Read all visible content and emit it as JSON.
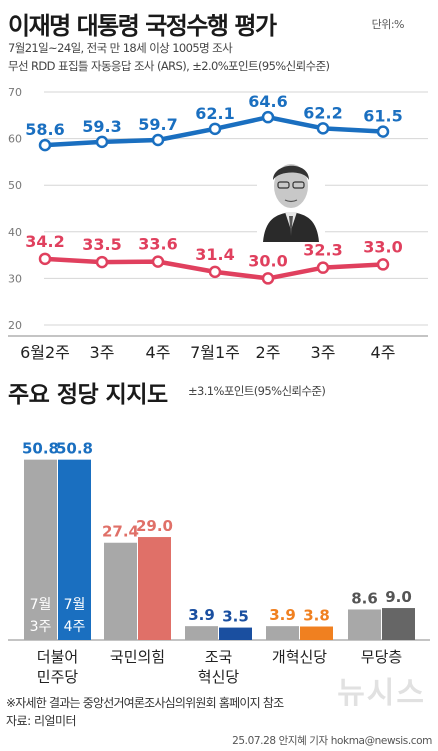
{
  "header": {
    "title": "이재명 대통령 국정수행 평가",
    "unit": "단위:%",
    "survey_info": "7월21일~24일, 전국 만 18세 이상 1005명 조사",
    "method_info": "무선 RDD 표집틀 자동응답 조사 (ARS), ±2.0%포인트(95%신뢰수준)"
  },
  "section2": {
    "title": "주요 정당 지지도",
    "margin": "±3.1%포인트(95%신뢰수준)"
  },
  "footer": {
    "note": "※자세한 결과는 중앙선거여론조사심의위원회 홈페이지 참조",
    "source": "자료: 리얼미터",
    "credit": "25.07.28 안지혜 기자 hokma@newsis.com",
    "watermark": "뉴시스"
  },
  "chart_data": [
    {
      "type": "line",
      "categories": [
        "6월2주",
        "3주",
        "4주",
        "7월1주",
        "2주",
        "3주",
        "4주"
      ],
      "ylim": [
        20,
        70
      ],
      "yticks": [
        "70",
        "60",
        "50",
        "40",
        "30",
        "20"
      ],
      "series": [
        {
          "values": [
            58.6,
            59.3,
            59.7,
            62.1,
            64.6,
            62.2,
            61.5
          ],
          "labels": [
            "58.6",
            "59.3",
            "59.7",
            "62.1",
            "64.6",
            "62.2",
            "61.5"
          ],
          "color": "#1a6fc0"
        },
        {
          "values": [
            34.2,
            33.5,
            33.6,
            31.4,
            30.0,
            32.3,
            33.0
          ],
          "labels": [
            "34.2",
            "33.5",
            "33.6",
            "31.4",
            "30.0",
            "32.3",
            "33.0"
          ],
          "color": "#e0405e"
        }
      ],
      "grid": true
    },
    {
      "type": "bar",
      "categories": [
        {
          "lines": [
            "더불어",
            "민주당"
          ]
        },
        {
          "lines": [
            "국민의힘"
          ]
        },
        {
          "lines": [
            "조국",
            "혁신당"
          ]
        },
        {
          "lines": [
            "개혁신당"
          ]
        },
        {
          "lines": [
            "무당층"
          ]
        }
      ],
      "period_labels": [
        "7월\n3주",
        "7월\n4주"
      ],
      "series": [
        {
          "period": "7월 3주",
          "values": [
            50.8,
            27.4,
            3.9,
            3.9,
            8.6
          ],
          "labels": [
            "50.8",
            "27.4",
            "3.9",
            "3.9",
            "8.6"
          ]
        },
        {
          "period": "7월 4주",
          "values": [
            50.8,
            29.0,
            3.5,
            3.8,
            9.0
          ],
          "labels": [
            "50.8",
            "29.0",
            "3.5",
            "3.8",
            "9.0"
          ]
        }
      ],
      "bar_colors": [
        [
          "#a8a8a8",
          "#1a6fc0"
        ],
        [
          "#a8a8a8",
          "#e07068"
        ],
        [
          "#a8a8a8",
          "#1a4fa0"
        ],
        [
          "#a8a8a8",
          "#f08020"
        ],
        [
          "#a8a8a8",
          "#666666"
        ]
      ],
      "label_colors": [
        [
          "#1a6fc0",
          "#1a6fc0"
        ],
        [
          "#e07068",
          "#e07068"
        ],
        [
          "#1a4fa0",
          "#1a4fa0"
        ],
        [
          "#f08020",
          "#f08020"
        ],
        [
          "#555555",
          "#555555"
        ]
      ]
    }
  ]
}
